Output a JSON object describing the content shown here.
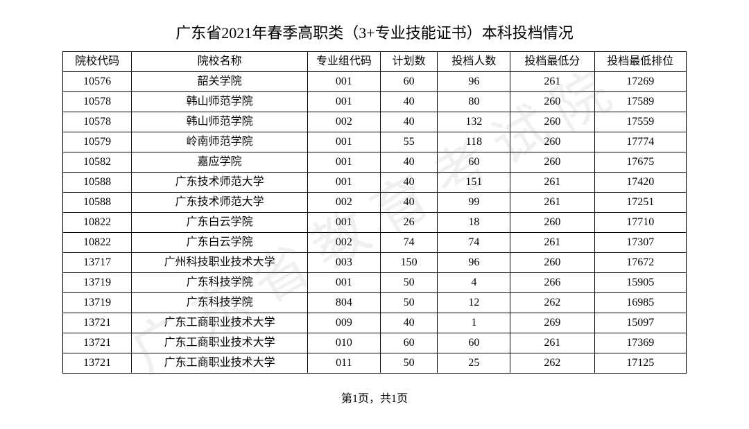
{
  "watermark_text": "广东省教育考试院",
  "title": "广东省2021年春季高职类（3+专业技能证书）本科投档情况",
  "columns": [
    "院校代码",
    "院校名称",
    "专业组代码",
    "计划数",
    "投档人数",
    "投档最低分",
    "投档最低排位"
  ],
  "rows": [
    [
      "10576",
      "韶关学院",
      "001",
      "60",
      "96",
      "261",
      "17269"
    ],
    [
      "10578",
      "韩山师范学院",
      "001",
      "40",
      "80",
      "260",
      "17589"
    ],
    [
      "10578",
      "韩山师范学院",
      "002",
      "40",
      "132",
      "260",
      "17559"
    ],
    [
      "10579",
      "岭南师范学院",
      "001",
      "55",
      "118",
      "260",
      "17774"
    ],
    [
      "10582",
      "嘉应学院",
      "001",
      "40",
      "60",
      "260",
      "17675"
    ],
    [
      "10588",
      "广东技术师范大学",
      "001",
      "40",
      "151",
      "261",
      "17420"
    ],
    [
      "10588",
      "广东技术师范大学",
      "002",
      "40",
      "99",
      "261",
      "17251"
    ],
    [
      "10822",
      "广东白云学院",
      "001",
      "26",
      "18",
      "260",
      "17710"
    ],
    [
      "10822",
      "广东白云学院",
      "002",
      "74",
      "74",
      "261",
      "17307"
    ],
    [
      "13717",
      "广州科技职业技术大学",
      "003",
      "150",
      "96",
      "260",
      "17672"
    ],
    [
      "13719",
      "广东科技学院",
      "001",
      "50",
      "4",
      "266",
      "15905"
    ],
    [
      "13719",
      "广东科技学院",
      "804",
      "50",
      "12",
      "262",
      "16985"
    ],
    [
      "13721",
      "广东工商职业技术大学",
      "009",
      "40",
      "1",
      "269",
      "15097"
    ],
    [
      "13721",
      "广东工商职业技术大学",
      "010",
      "60",
      "60",
      "261",
      "17369"
    ],
    [
      "13721",
      "广东工商职业技术大学",
      "011",
      "50",
      "25",
      "262",
      "17125"
    ]
  ],
  "footer": "第1页，共1页",
  "styling": {
    "background_color": "#ffffff",
    "text_color": "#000000",
    "border_color": "#000000",
    "watermark_color": "rgba(128,128,128,0.12)",
    "title_fontsize": 22,
    "table_fontsize": 16,
    "footer_fontsize": 16
  }
}
